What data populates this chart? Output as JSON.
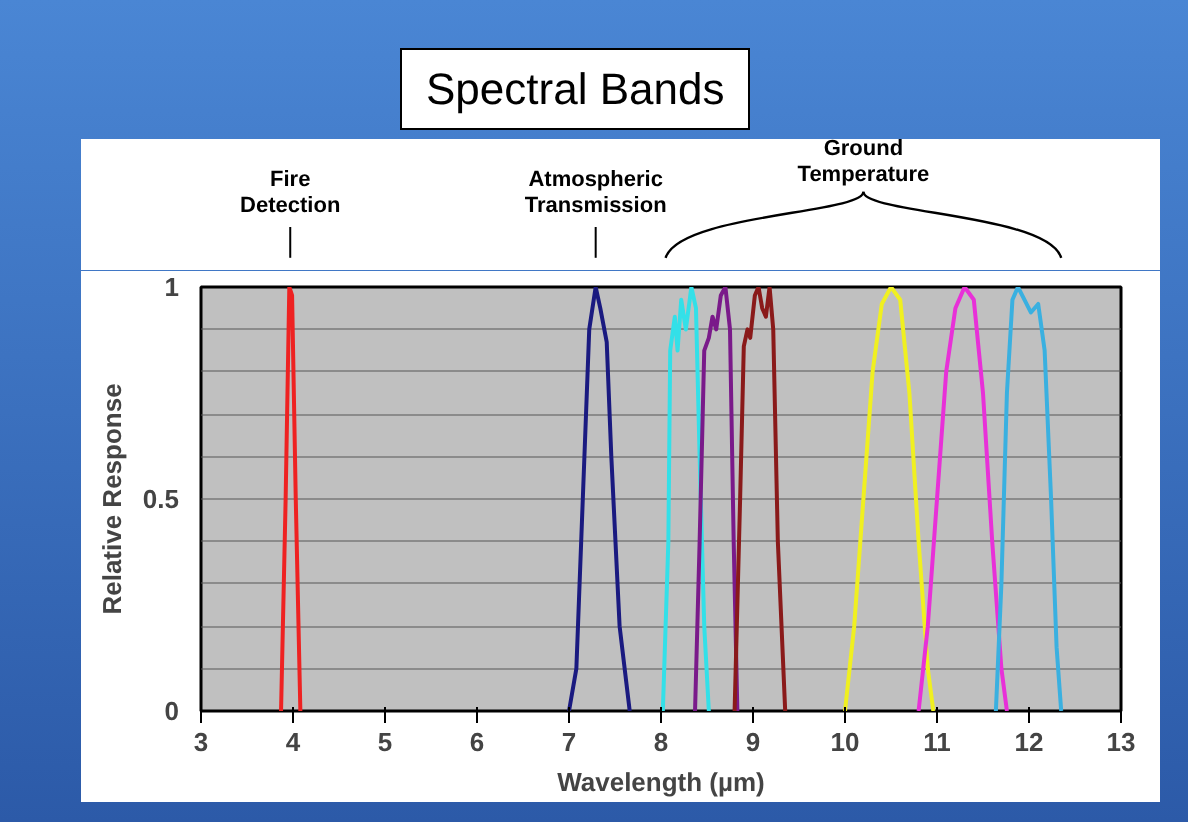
{
  "chart_data": {
    "type": "line",
    "title": "Spectral Bands",
    "xlabel": "Wavelength (µm)",
    "ylabel": "Relative Response",
    "xlim": [
      3,
      13
    ],
    "xticks": [
      3,
      4,
      5,
      6,
      7,
      8,
      9,
      10,
      11,
      12,
      13
    ],
    "ylim": [
      0,
      1
    ],
    "yticks": [
      0,
      {
        "value": 0.1,
        "label": null
      },
      {
        "value": 0.2,
        "label": null
      },
      {
        "value": 0.3,
        "label": null
      },
      {
        "value": 0.4,
        "label": null
      },
      0.5,
      {
        "value": 0.6,
        "label": null
      },
      {
        "value": 0.7,
        "label": null
      },
      {
        "value": 0.8,
        "label": null
      },
      {
        "value": 0.9,
        "label": null
      },
      1
    ],
    "grid": "y",
    "marker": "none",
    "line_style": "solid",
    "annotations": [
      "Fire Detection",
      "Atmospheric Transmission",
      "Ground Temperature"
    ],
    "series": [
      {
        "color": "#ee2222",
        "x": [
          3.87,
          3.92,
          3.96,
          3.99,
          4.03,
          4.08
        ],
        "values": [
          0,
          0.5,
          1,
          0.98,
          0.5,
          0
        ]
      },
      {
        "color": "#1a1a80",
        "x": [
          7.0,
          7.08,
          7.15,
          7.22,
          7.29,
          7.34,
          7.41,
          7.46,
          7.55,
          7.66
        ],
        "values": [
          0,
          0.1,
          0.5,
          0.9,
          1,
          0.95,
          0.87,
          0.6,
          0.2,
          0
        ]
      },
      {
        "color": "#33e0e8",
        "x": [
          8.02,
          8.08,
          8.1,
          8.15,
          8.18,
          8.22,
          8.27,
          8.33,
          8.38,
          8.42,
          8.47,
          8.52
        ],
        "values": [
          0,
          0.4,
          0.85,
          0.93,
          0.85,
          0.97,
          0.9,
          1,
          0.95,
          0.6,
          0.2,
          0
        ]
      },
      {
        "color": "#7a1a8a",
        "x": [
          8.37,
          8.42,
          8.47,
          8.52,
          8.56,
          8.6,
          8.65,
          8.7,
          8.75,
          8.79,
          8.83
        ],
        "values": [
          0,
          0.4,
          0.85,
          0.88,
          0.93,
          0.9,
          0.98,
          1,
          0.9,
          0.4,
          0
        ]
      },
      {
        "color": "#8a1a1a",
        "x": [
          8.8,
          8.86,
          8.9,
          8.94,
          8.97,
          9.02,
          9.06,
          9.1,
          9.14,
          9.18,
          9.22,
          9.27,
          9.35
        ],
        "values": [
          0,
          0.5,
          0.86,
          0.9,
          0.88,
          0.98,
          1,
          0.95,
          0.93,
          1,
          0.9,
          0.4,
          0
        ]
      },
      {
        "color": "#f0f020",
        "x": [
          10.0,
          10.1,
          10.2,
          10.3,
          10.4,
          10.5,
          10.6,
          10.7,
          10.8,
          10.9,
          10.96
        ],
        "values": [
          0,
          0.2,
          0.5,
          0.8,
          0.96,
          1,
          0.97,
          0.75,
          0.4,
          0.1,
          0
        ]
      },
      {
        "color": "#e830d8",
        "x": [
          10.8,
          10.9,
          11.0,
          11.1,
          11.2,
          11.3,
          11.4,
          11.5,
          11.6,
          11.7,
          11.76
        ],
        "values": [
          0,
          0.2,
          0.5,
          0.8,
          0.95,
          1,
          0.97,
          0.75,
          0.4,
          0.1,
          0
        ]
      },
      {
        "color": "#3ab0e0",
        "x": [
          11.64,
          11.7,
          11.76,
          11.82,
          11.88,
          11.95,
          12.02,
          12.1,
          12.17,
          12.24,
          12.3,
          12.35
        ],
        "values": [
          0,
          0.3,
          0.75,
          0.97,
          1,
          0.97,
          0.94,
          0.96,
          0.85,
          0.5,
          0.15,
          0
        ]
      }
    ]
  }
}
